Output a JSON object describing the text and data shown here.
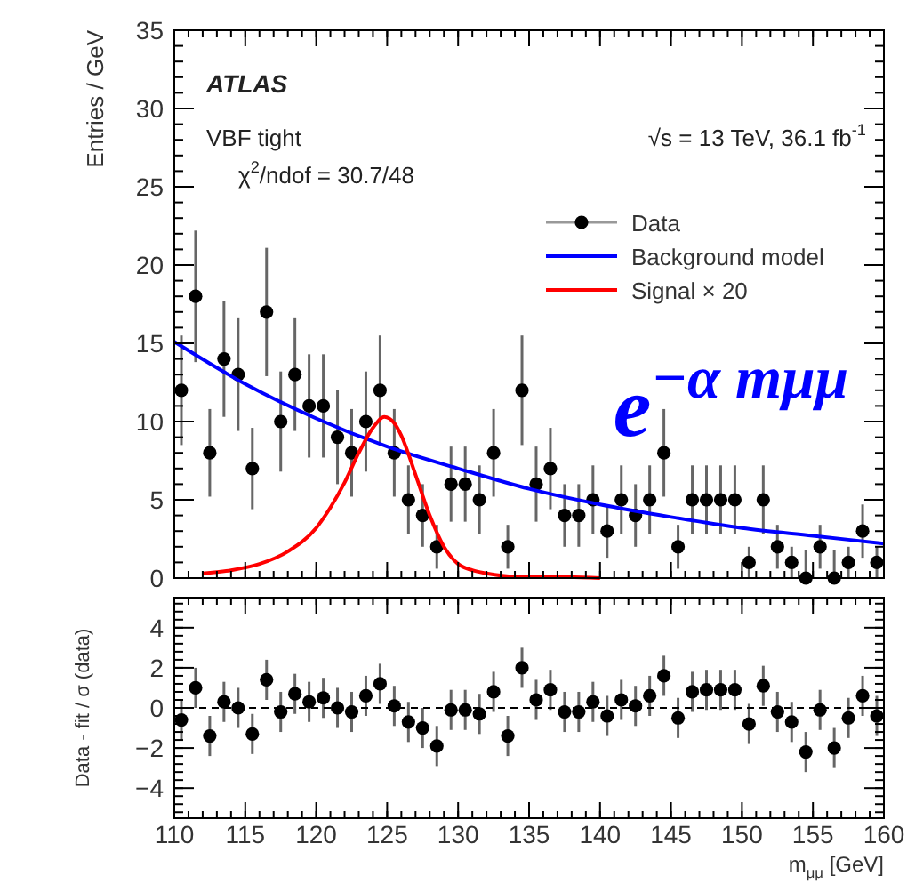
{
  "chart_data": [
    {
      "type": "scatter",
      "ylabel": "Entries / GeV",
      "xlim": [
        110,
        160
      ],
      "xticks": [
        110,
        115,
        120,
        125,
        130,
        135,
        140,
        145,
        150,
        155,
        160
      ],
      "ylim": [
        0,
        35
      ],
      "yticks": [
        0,
        5,
        10,
        15,
        20,
        25,
        30,
        35
      ],
      "tick_labels": "y",
      "legend": "right",
      "annotations": [
        "ATLAS",
        "VBF tight",
        "χ$^{2}$/ndof = 30.7/48",
        "√s = 13 TeV, 36.1 fb$^{-1}$",
        "e$^{−α mμμ}$"
      ],
      "series": [
        {
          "name": "Data",
          "type": "scatter",
          "marker": "circle",
          "color": "#000000",
          "x": [
            110.5,
            111.5,
            112.5,
            113.5,
            114.5,
            115.5,
            116.5,
            117.5,
            118.5,
            119.5,
            120.5,
            121.5,
            122.5,
            123.5,
            124.5,
            125.5,
            126.5,
            127.5,
            128.5,
            129.5,
            130.5,
            131.5,
            132.5,
            133.5,
            134.5,
            135.5,
            136.5,
            137.5,
            138.5,
            139.5,
            140.5,
            141.5,
            142.5,
            143.5,
            144.5,
            145.5,
            146.5,
            147.5,
            148.5,
            149.5,
            150.5,
            151.5,
            152.5,
            153.5,
            154.5,
            155.5,
            156.5,
            157.5,
            158.5,
            159.5
          ],
          "values": [
            12,
            18,
            8,
            14,
            13,
            7,
            17,
            10,
            13,
            11,
            11,
            9,
            8,
            10,
            12,
            8,
            5,
            4,
            2,
            6,
            6,
            5,
            8,
            2,
            12,
            6,
            7,
            4,
            4,
            5,
            3,
            5,
            4,
            5,
            8,
            2,
            5,
            5,
            5,
            5,
            1,
            5,
            2,
            1,
            0,
            2,
            0,
            1,
            3,
            1
          ],
          "errors": [
            3.5,
            4.2,
            2.8,
            3.7,
            3.6,
            2.6,
            4.1,
            3.2,
            3.6,
            3.3,
            3.3,
            3,
            2.8,
            3.2,
            3.5,
            2.8,
            2.2,
            2,
            1.4,
            2.4,
            2.4,
            2.2,
            2.8,
            1.4,
            3.5,
            2.4,
            2.6,
            2,
            2,
            2.2,
            1.7,
            2.2,
            2,
            2.2,
            2.8,
            1.4,
            2.2,
            2.2,
            2.2,
            2.2,
            1,
            2.2,
            1.4,
            1,
            [
              0,
              1.8
            ],
            1.4,
            [
              0,
              1.8
            ],
            1,
            1.7,
            1
          ]
        },
        {
          "name": "Background model",
          "type": "line",
          "color": "#0000ff",
          "x": [
            110,
            115,
            120,
            125,
            130,
            135,
            140,
            145,
            150,
            155,
            160
          ],
          "values": [
            15.1,
            12.4,
            10.2,
            8.4,
            7.0,
            5.7,
            4.7,
            3.9,
            3.2,
            2.7,
            2.2
          ]
        },
        {
          "name": "Signal × 20",
          "type": "line",
          "color": "#ff0000",
          "x": [
            112,
            114,
            116,
            118,
            120,
            121,
            122,
            123,
            124,
            124.8,
            125.5,
            126,
            127,
            128,
            129,
            130,
            131,
            132,
            134,
            136,
            140
          ],
          "values": [
            0.3,
            0.5,
            0.9,
            1.7,
            3.2,
            4.5,
            6.1,
            8.0,
            9.6,
            10.3,
            9.9,
            9.1,
            6.6,
            4.0,
            2.0,
            0.9,
            0.5,
            0.3,
            0.1,
            0.1,
            0
          ]
        }
      ]
    },
    {
      "type": "scatter",
      "xlabel": "m$_{μμ}$ [GeV]",
      "ylabel": "Data - fit / σ (data)",
      "xlim": [
        110,
        160
      ],
      "xticks": [
        110,
        115,
        120,
        125,
        130,
        135,
        140,
        145,
        150,
        155,
        160
      ],
      "ylim": [
        -5.5,
        5.5
      ],
      "yticks": [
        -4,
        -2,
        0,
        2,
        4
      ],
      "marker": "circle",
      "color": "#000000",
      "ref_lines": [
        {
          "axis": "y",
          "value": 0,
          "line_style": "dashed",
          "color": "#000000"
        }
      ],
      "x": [
        110.5,
        111.5,
        112.5,
        113.5,
        114.5,
        115.5,
        116.5,
        117.5,
        118.5,
        119.5,
        120.5,
        121.5,
        122.5,
        123.5,
        124.5,
        125.5,
        126.5,
        127.5,
        128.5,
        129.5,
        130.5,
        131.5,
        132.5,
        133.5,
        134.5,
        135.5,
        136.5,
        137.5,
        138.5,
        139.5,
        140.5,
        141.5,
        142.5,
        143.5,
        144.5,
        145.5,
        146.5,
        147.5,
        148.5,
        149.5,
        150.5,
        151.5,
        152.5,
        153.5,
        154.5,
        155.5,
        156.5,
        157.5,
        158.5,
        159.5
      ],
      "values": [
        -0.6,
        1.0,
        -1.4,
        0.3,
        0.0,
        -1.3,
        1.4,
        -0.2,
        0.7,
        0.3,
        0.5,
        0.0,
        -0.2,
        0.6,
        1.2,
        0.1,
        -0.7,
        -1.0,
        -1.9,
        -0.1,
        -0.1,
        -0.3,
        0.8,
        -1.4,
        2.0,
        0.4,
        0.9,
        -0.2,
        -0.2,
        0.3,
        -0.4,
        0.4,
        0.1,
        0.6,
        1.6,
        -0.5,
        0.8,
        0.9,
        0.9,
        0.9,
        -0.8,
        1.1,
        -0.2,
        -0.7,
        -2.2,
        -0.1,
        -2.0,
        -0.5,
        0.6,
        -0.4
      ],
      "errors": [
        1,
        1,
        1,
        1,
        1,
        1,
        1,
        1,
        1,
        1,
        1,
        1,
        1,
        1,
        1,
        1,
        1,
        1,
        1,
        1,
        1,
        1,
        1,
        1,
        1,
        1,
        1,
        1,
        1,
        1,
        1,
        1,
        1,
        1,
        1,
        1,
        1,
        1,
        1,
        1,
        1,
        1,
        1,
        1,
        1,
        1,
        1,
        1,
        1,
        1
      ]
    }
  ]
}
